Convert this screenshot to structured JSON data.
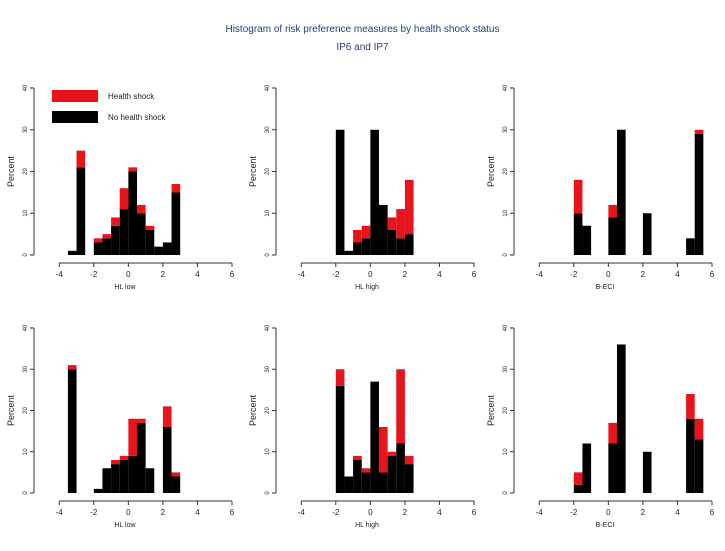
{
  "title": "Histogram of risk preference measures by health shock status",
  "subtitle": "IP6 and IP7",
  "colors": {
    "shock": "#e8141c",
    "no_shock": "#000000",
    "axis": "#333333"
  },
  "chart_data": [
    {
      "type": "bar",
      "stacked": true,
      "xlabel": "HL low",
      "ylabel": "Percent",
      "xlim": [
        -5,
        6
      ],
      "ylim": [
        0,
        40
      ],
      "xticks": [
        "-4",
        "-2",
        "0",
        "2",
        "4",
        "6"
      ],
      "yticks": [
        "0",
        "10",
        "20",
        "30",
        "40"
      ],
      "bin_width": 0.5,
      "legend": {
        "position": "top-left",
        "entries": [
          "Health shock",
          "No health shock"
        ]
      },
      "x": [
        -3.25,
        -2.75,
        -1.75,
        -1.25,
        -0.75,
        -0.25,
        0.25,
        0.75,
        1.25,
        1.75,
        2.25,
        2.75
      ],
      "series": [
        {
          "name": "No health shock",
          "values": [
            1,
            21,
            3,
            4,
            7,
            11,
            20,
            10,
            6,
            2,
            3,
            15
          ]
        },
        {
          "name": "Health shock",
          "values": [
            0,
            4,
            1,
            1,
            2,
            5,
            1,
            2,
            1,
            0,
            0,
            2
          ]
        }
      ]
    },
    {
      "type": "bar",
      "stacked": true,
      "xlabel": "HL high",
      "ylabel": "Percent",
      "xlim": [
        -5,
        6
      ],
      "ylim": [
        0,
        40
      ],
      "xticks": [
        "-4",
        "-2",
        "0",
        "2",
        "4",
        "6"
      ],
      "yticks": [
        "0",
        "10",
        "20",
        "30",
        "40"
      ],
      "bin_width": 0.5,
      "x": [
        -1.75,
        -1.25,
        -0.75,
        -0.25,
        0.25,
        0.75,
        1.25,
        1.75,
        2.25
      ],
      "series": [
        {
          "name": "No health shock",
          "values": [
            30,
            1,
            3,
            4,
            30,
            12,
            6,
            4,
            5
          ]
        },
        {
          "name": "Health shock",
          "values": [
            0,
            0,
            3,
            3,
            0,
            0,
            3,
            7,
            13
          ]
        }
      ]
    },
    {
      "type": "bar",
      "stacked": true,
      "xlabel": "B-ECI",
      "ylabel": "Percent",
      "xlim": [
        -5,
        6
      ],
      "ylim": [
        0,
        40
      ],
      "xticks": [
        "-4",
        "-2",
        "0",
        "2",
        "4",
        "6"
      ],
      "yticks": [
        "0",
        "10",
        "20",
        "30",
        "40"
      ],
      "bin_width": 0.5,
      "x": [
        -1.75,
        -1.25,
        0.25,
        0.75,
        2.25,
        4.75,
        5.25
      ],
      "series": [
        {
          "name": "No health shock",
          "values": [
            10,
            7,
            9,
            30,
            10,
            4,
            29
          ]
        },
        {
          "name": "Health shock",
          "values": [
            8,
            0,
            3,
            0,
            0,
            0,
            1
          ]
        }
      ]
    },
    {
      "type": "bar",
      "stacked": true,
      "xlabel": "HL low",
      "ylabel": "Percent",
      "xlim": [
        -5,
        6
      ],
      "ylim": [
        0,
        40
      ],
      "xticks": [
        "-4",
        "-2",
        "0",
        "2",
        "4",
        "6"
      ],
      "yticks": [
        "0",
        "10",
        "20",
        "30",
        "40"
      ],
      "bin_width": 0.5,
      "x": [
        -3.25,
        -1.75,
        -1.25,
        -0.75,
        -0.25,
        0.25,
        0.75,
        1.25,
        2.25,
        2.75
      ],
      "series": [
        {
          "name": "No health shock",
          "values": [
            30,
            1,
            6,
            7,
            8,
            9,
            17,
            6,
            16,
            4
          ]
        },
        {
          "name": "Health shock",
          "values": [
            1,
            0,
            0,
            1,
            1,
            9,
            1,
            0,
            5,
            1
          ]
        }
      ]
    },
    {
      "type": "bar",
      "stacked": true,
      "xlabel": "HL high",
      "ylabel": "Percent",
      "xlim": [
        -5,
        6
      ],
      "ylim": [
        0,
        40
      ],
      "xticks": [
        "-4",
        "-2",
        "0",
        "2",
        "4",
        "6"
      ],
      "yticks": [
        "0",
        "10",
        "20",
        "30",
        "40"
      ],
      "bin_width": 0.5,
      "x": [
        -1.75,
        -1.25,
        -0.75,
        -0.25,
        0.25,
        0.75,
        1.25,
        1.75,
        2.25
      ],
      "series": [
        {
          "name": "No health shock",
          "values": [
            26,
            4,
            8,
            5,
            27,
            5,
            9,
            12,
            7
          ]
        },
        {
          "name": "Health shock",
          "values": [
            4,
            0,
            1,
            1,
            0,
            11,
            1,
            18,
            2
          ]
        }
      ]
    },
    {
      "type": "bar",
      "stacked": true,
      "xlabel": "B-ECI",
      "ylabel": "Percent",
      "xlim": [
        -5,
        6
      ],
      "ylim": [
        0,
        40
      ],
      "xticks": [
        "-4",
        "-2",
        "0",
        "2",
        "4",
        "6"
      ],
      "yticks": [
        "0",
        "10",
        "20",
        "30",
        "40"
      ],
      "bin_width": 0.5,
      "x": [
        -1.75,
        -1.25,
        0.25,
        0.75,
        2.25,
        4.75,
        5.25
      ],
      "series": [
        {
          "name": "No health shock",
          "values": [
            2,
            12,
            12,
            36,
            10,
            18,
            13
          ]
        },
        {
          "name": "Health shock",
          "values": [
            3,
            0,
            5,
            0,
            0,
            6,
            5
          ]
        }
      ]
    }
  ]
}
